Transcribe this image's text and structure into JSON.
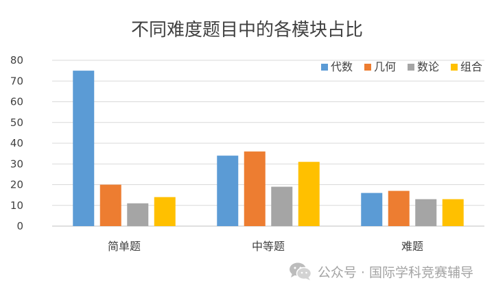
{
  "chart_data": {
    "type": "bar",
    "title": "不同难度题目中的各模块占比",
    "categories": [
      "简单题",
      "中等题",
      "难题"
    ],
    "series": [
      {
        "name": "代数",
        "color": "#5B9BD5",
        "values": [
          75,
          34,
          16
        ]
      },
      {
        "name": "几何",
        "color": "#ED7D31",
        "values": [
          20,
          36,
          17
        ]
      },
      {
        "name": "数论",
        "color": "#A5A5A5",
        "values": [
          11,
          19,
          13
        ]
      },
      {
        "name": "组合",
        "color": "#FFC000",
        "values": [
          14,
          31,
          13
        ]
      }
    ],
    "ylim": [
      0,
      80
    ],
    "yticks": [
      0,
      10,
      20,
      30,
      40,
      50,
      60,
      70,
      80
    ],
    "grid": true,
    "legend": "top-right"
  },
  "watermark": {
    "icon": "wechat-icon",
    "text": "公众号 · 国际学科竞赛辅导"
  }
}
